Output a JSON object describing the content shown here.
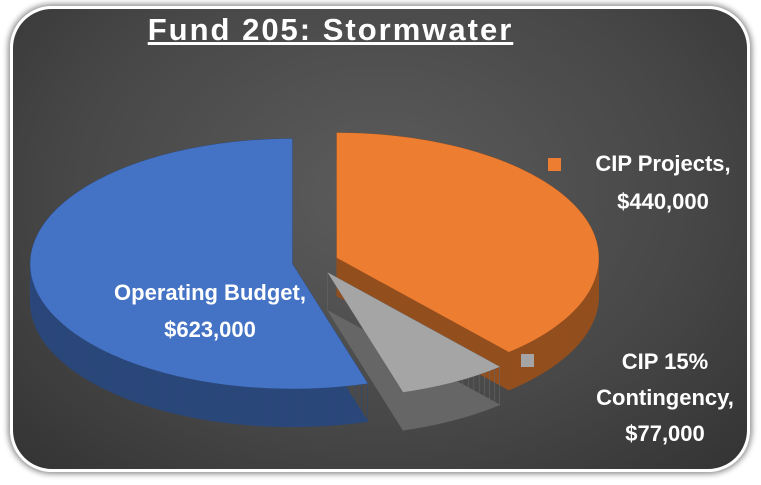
{
  "chart_data": {
    "type": "pie3d",
    "title": "Fund 205: Stormwater",
    "categories": [
      "Operating Budget,",
      "CIP Projects,",
      "CIP 15% Contingency,"
    ],
    "values": [
      623000,
      440000,
      77000
    ],
    "value_labels": [
      "$623,000",
      "$440,000",
      "$77,000"
    ],
    "colors": [
      "#4472c4",
      "#ed7d31",
      "#a5a5a5"
    ]
  }
}
